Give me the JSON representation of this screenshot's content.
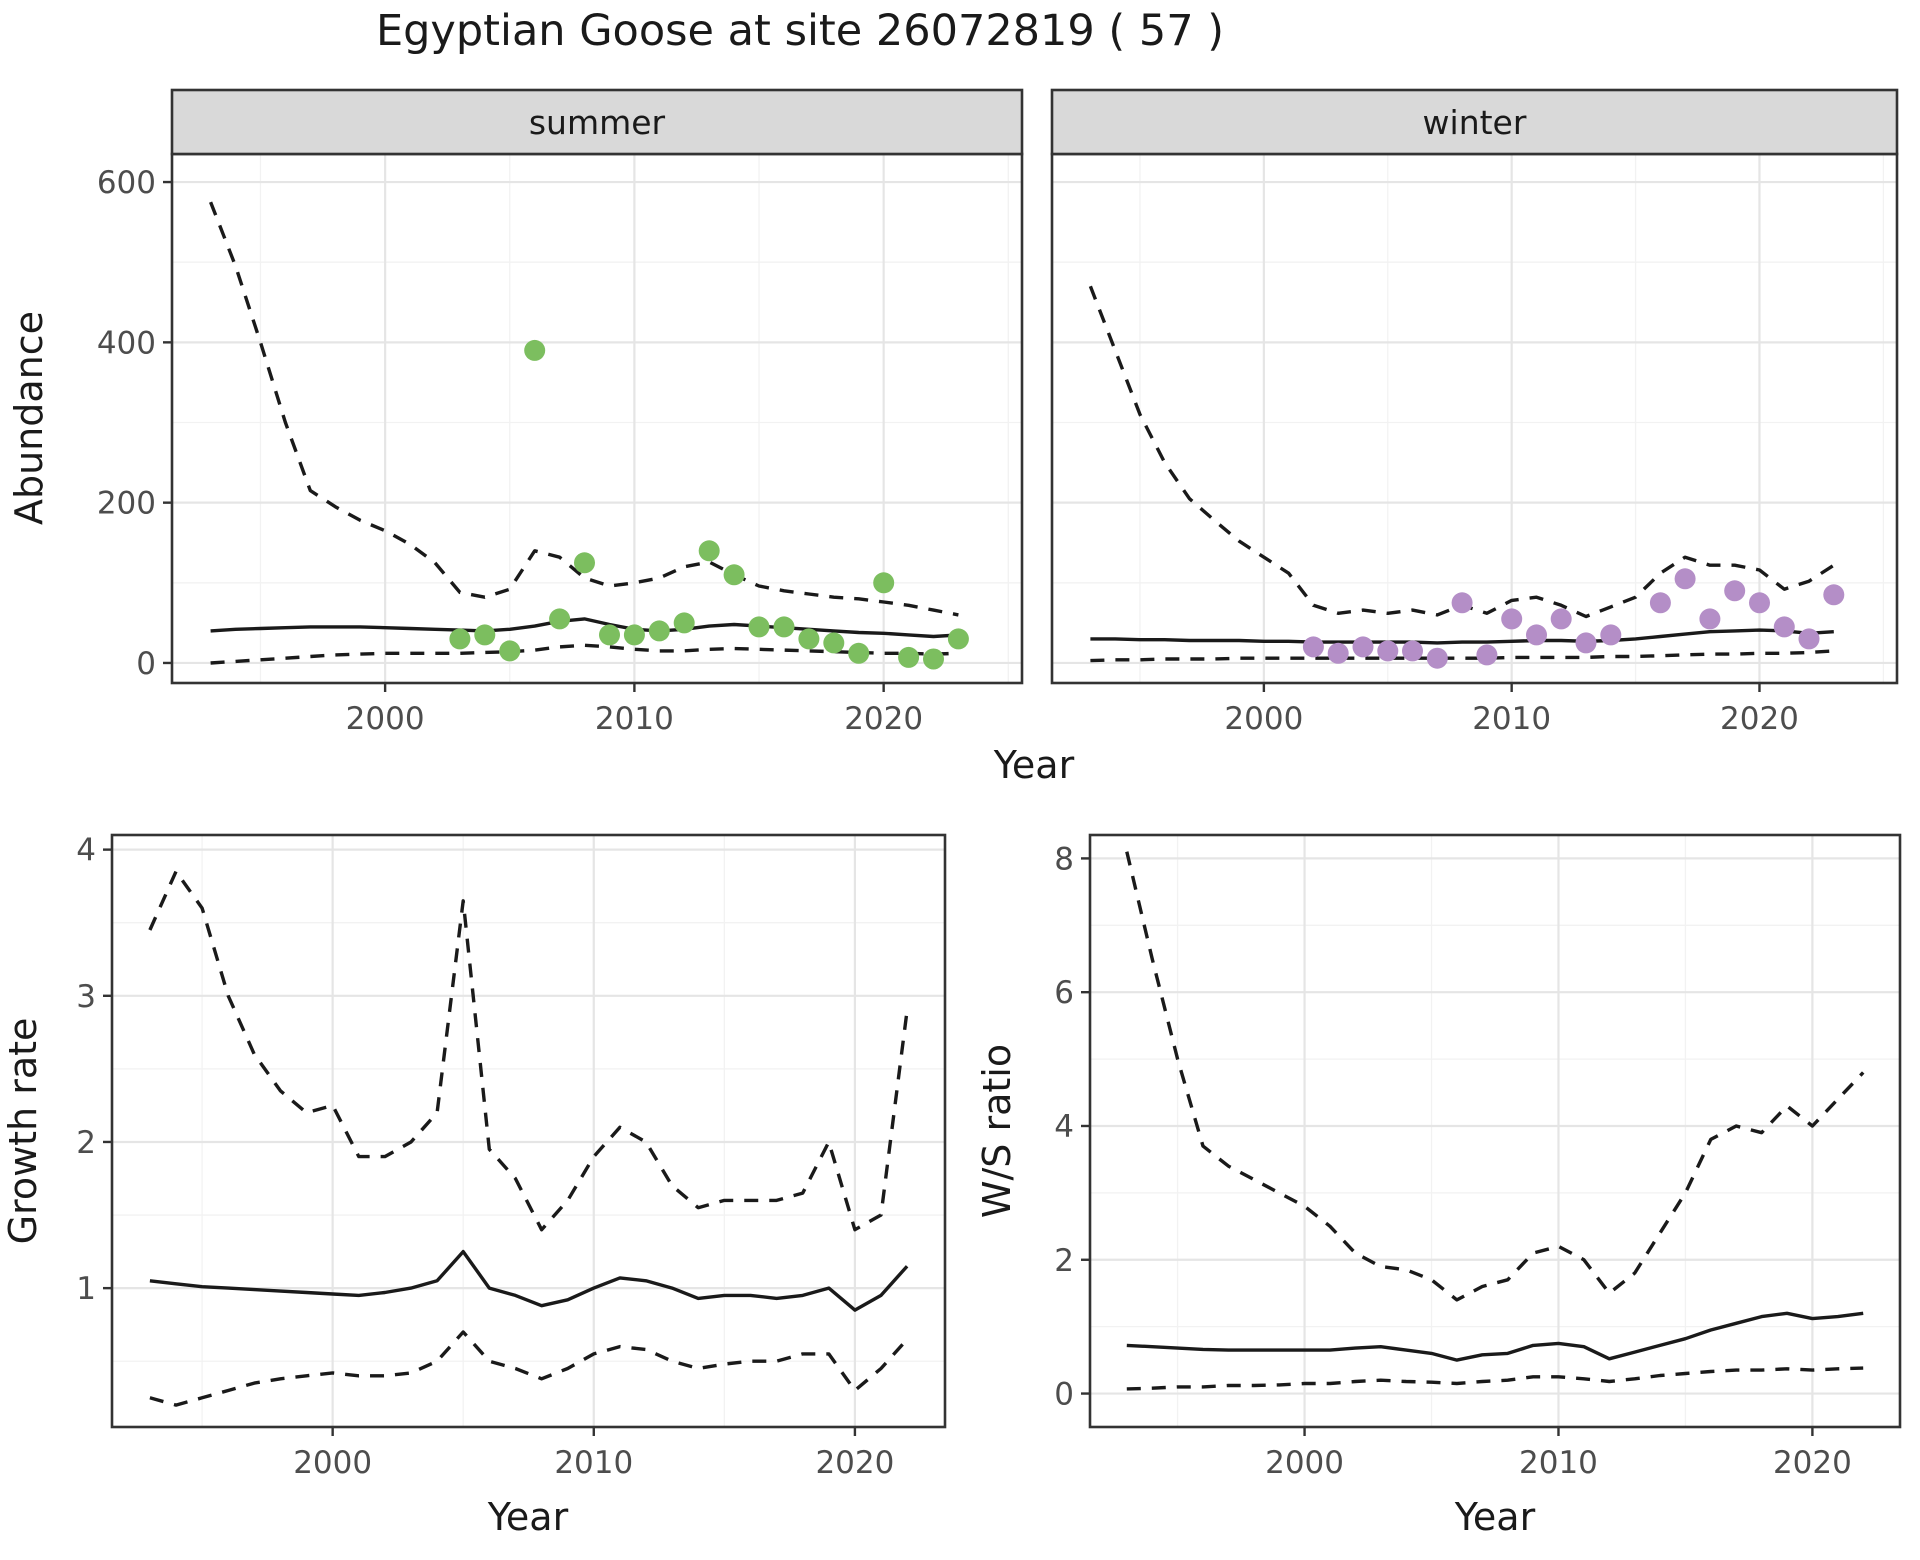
{
  "page_title": "Egyptian Goose at site 26072819 ( 57 )",
  "colors": {
    "line": "#1a1a1a",
    "panel_bg": "#ffffff",
    "grid_major": "#e5e5e5",
    "grid_minor": "#f2f2f2",
    "strip_bg": "#d9d9d9",
    "border": "#333333",
    "tick_text": "#4d4d4d",
    "summer_points": "#7cbe5f",
    "winter_points": "#b48ec7"
  },
  "chart_data": [
    {
      "id": "abundance-summer",
      "type": "line",
      "facet": "summer",
      "xlabel": "Year",
      "ylabel": "Abundance",
      "xlim": [
        1991.45,
        2025.55
      ],
      "ylim": [
        -25,
        635
      ],
      "xticks": [
        2000,
        2010,
        2020
      ],
      "yticks": [
        0,
        200,
        400,
        600
      ],
      "grid": true,
      "legend": "none",
      "series": [
        {
          "name": "upper-ci",
          "style": "dashed",
          "x": [
            1993,
            1994,
            1995,
            1996,
            1997,
            1998,
            1999,
            2000,
            2001,
            2002,
            2003,
            2004,
            2005,
            2006,
            2007,
            2008,
            2009,
            2010,
            2011,
            2012,
            2013,
            2014,
            2015,
            2016,
            2017,
            2018,
            2019,
            2020,
            2021,
            2022,
            2023
          ],
          "y": [
            575,
            495,
            400,
            300,
            215,
            195,
            178,
            165,
            148,
            125,
            88,
            82,
            92,
            140,
            132,
            106,
            96,
            100,
            106,
            120,
            126,
            110,
            96,
            90,
            86,
            82,
            80,
            76,
            72,
            66,
            60
          ]
        },
        {
          "name": "mean",
          "style": "solid",
          "x": [
            1993,
            1994,
            1995,
            1996,
            1997,
            1998,
            1999,
            2000,
            2001,
            2002,
            2003,
            2004,
            2005,
            2006,
            2007,
            2008,
            2009,
            2010,
            2011,
            2012,
            2013,
            2014,
            2015,
            2016,
            2017,
            2018,
            2019,
            2020,
            2021,
            2022,
            2023
          ],
          "y": [
            40,
            42,
            43,
            44,
            45,
            45,
            45,
            44,
            43,
            42,
            41,
            40,
            42,
            46,
            52,
            55,
            48,
            42,
            40,
            42,
            46,
            48,
            46,
            44,
            42,
            40,
            38,
            37,
            35,
            33,
            35
          ]
        },
        {
          "name": "lower-ci",
          "style": "dashed",
          "x": [
            1993,
            1994,
            1995,
            1996,
            1997,
            1998,
            1999,
            2000,
            2001,
            2002,
            2003,
            2004,
            2005,
            2006,
            2007,
            2008,
            2009,
            2010,
            2011,
            2012,
            2013,
            2014,
            2015,
            2016,
            2017,
            2018,
            2019,
            2020,
            2021,
            2022,
            2023
          ],
          "y": [
            0,
            2,
            4,
            6,
            8,
            10,
            11,
            12,
            12,
            12,
            12,
            13,
            14,
            16,
            20,
            22,
            20,
            17,
            15,
            15,
            17,
            18,
            17,
            16,
            15,
            14,
            13,
            12,
            12,
            11,
            12
          ]
        }
      ],
      "points": {
        "name": "summer-observation",
        "color": "#7cbe5f",
        "x": [
          2003,
          2004,
          2005,
          2006,
          2007,
          2008,
          2009,
          2010,
          2011,
          2012,
          2013,
          2014,
          2015,
          2016,
          2017,
          2018,
          2019,
          2020,
          2021,
          2022,
          2023
        ],
        "y": [
          30,
          35,
          15,
          390,
          55,
          125,
          35,
          35,
          40,
          50,
          140,
          110,
          45,
          45,
          30,
          25,
          12,
          100,
          7,
          5,
          30
        ]
      }
    },
    {
      "id": "abundance-winter",
      "type": "line",
      "facet": "winter",
      "xlabel": "Year",
      "ylabel": "Abundance",
      "xlim": [
        1991.45,
        2025.55
      ],
      "ylim": [
        -25,
        635
      ],
      "xticks": [
        2000,
        2010,
        2020
      ],
      "yticks": [
        0,
        200,
        400,
        600
      ],
      "grid": true,
      "legend": "none",
      "series": [
        {
          "name": "upper-ci",
          "style": "dashed",
          "x": [
            1993,
            1994,
            1995,
            1996,
            1997,
            1998,
            1999,
            2000,
            2001,
            2002,
            2003,
            2004,
            2005,
            2006,
            2007,
            2008,
            2009,
            2010,
            2011,
            2012,
            2013,
            2014,
            2015,
            2016,
            2017,
            2018,
            2019,
            2020,
            2021,
            2022,
            2023
          ],
          "y": [
            470,
            390,
            310,
            250,
            205,
            178,
            152,
            132,
            112,
            72,
            62,
            66,
            62,
            66,
            60,
            72,
            62,
            78,
            82,
            72,
            58,
            70,
            82,
            112,
            132,
            122,
            122,
            116,
            92,
            102,
            122
          ]
        },
        {
          "name": "mean",
          "style": "solid",
          "x": [
            1993,
            1994,
            1995,
            1996,
            1997,
            1998,
            1999,
            2000,
            2001,
            2002,
            2003,
            2004,
            2005,
            2006,
            2007,
            2008,
            2009,
            2010,
            2011,
            2012,
            2013,
            2014,
            2015,
            2016,
            2017,
            2018,
            2019,
            2020,
            2021,
            2022,
            2023
          ],
          "y": [
            30,
            30,
            29,
            29,
            28,
            28,
            28,
            27,
            27,
            26,
            26,
            26,
            26,
            26,
            25,
            26,
            26,
            27,
            28,
            28,
            27,
            28,
            30,
            33,
            36,
            39,
            40,
            41,
            40,
            37,
            39
          ]
        },
        {
          "name": "lower-ci",
          "style": "dashed",
          "x": [
            1993,
            1994,
            1995,
            1996,
            1997,
            1998,
            1999,
            2000,
            2001,
            2002,
            2003,
            2004,
            2005,
            2006,
            2007,
            2008,
            2009,
            2010,
            2011,
            2012,
            2013,
            2014,
            2015,
            2016,
            2017,
            2018,
            2019,
            2020,
            2021,
            2022,
            2023
          ],
          "y": [
            3,
            4,
            4,
            5,
            5,
            5,
            6,
            6,
            6,
            6,
            6,
            6,
            6,
            6,
            6,
            6,
            6,
            7,
            7,
            7,
            7,
            8,
            8,
            9,
            10,
            11,
            11,
            12,
            12,
            13,
            15
          ]
        }
      ],
      "points": {
        "name": "winter-observation",
        "color": "#b48ec7",
        "x": [
          2002,
          2003,
          2004,
          2005,
          2006,
          2007,
          2008,
          2009,
          2010,
          2011,
          2012,
          2013,
          2014,
          2016,
          2017,
          2018,
          2019,
          2020,
          2021,
          2022,
          2023
        ],
        "y": [
          20,
          12,
          20,
          15,
          15,
          6,
          75,
          10,
          55,
          35,
          55,
          25,
          35,
          75,
          105,
          55,
          90,
          75,
          45,
          30,
          85
        ]
      }
    },
    {
      "id": "growth-rate",
      "type": "line",
      "facet": null,
      "xlabel": "Year",
      "ylabel": "Growth rate",
      "xlim": [
        1991.55,
        2023.45
      ],
      "ylim": [
        0.05,
        4.1
      ],
      "xticks": [
        2000,
        2010,
        2020
      ],
      "yticks": [
        1,
        2,
        3,
        4
      ],
      "grid": true,
      "legend": "none",
      "series": [
        {
          "name": "upper-ci",
          "style": "dashed",
          "x": [
            1993,
            1994,
            1995,
            1996,
            1997,
            1998,
            1999,
            2000,
            2001,
            2002,
            2003,
            2004,
            2005,
            2006,
            2007,
            2008,
            2009,
            2010,
            2011,
            2012,
            2013,
            2014,
            2015,
            2016,
            2017,
            2018,
            2019,
            2020,
            2021,
            2022
          ],
          "y": [
            3.45,
            3.85,
            3.6,
            3.0,
            2.6,
            2.35,
            2.2,
            2.25,
            1.9,
            1.9,
            2.0,
            2.2,
            3.65,
            1.95,
            1.75,
            1.4,
            1.6,
            1.9,
            2.1,
            2.0,
            1.7,
            1.55,
            1.6,
            1.6,
            1.6,
            1.65,
            2.0,
            1.4,
            1.5,
            2.9
          ]
        },
        {
          "name": "mean",
          "style": "solid",
          "x": [
            1993,
            1994,
            1995,
            1996,
            1997,
            1998,
            1999,
            2000,
            2001,
            2002,
            2003,
            2004,
            2005,
            2006,
            2007,
            2008,
            2009,
            2010,
            2011,
            2012,
            2013,
            2014,
            2015,
            2016,
            2017,
            2018,
            2019,
            2020,
            2021,
            2022
          ],
          "y": [
            1.05,
            1.03,
            1.01,
            1.0,
            0.99,
            0.98,
            0.97,
            0.96,
            0.95,
            0.97,
            1.0,
            1.05,
            1.25,
            1.0,
            0.95,
            0.88,
            0.92,
            1.0,
            1.07,
            1.05,
            1.0,
            0.93,
            0.95,
            0.95,
            0.93,
            0.95,
            1.0,
            0.85,
            0.95,
            1.15
          ]
        },
        {
          "name": "lower-ci",
          "style": "dashed",
          "x": [
            1993,
            1994,
            1995,
            1996,
            1997,
            1998,
            1999,
            2000,
            2001,
            2002,
            2003,
            2004,
            2005,
            2006,
            2007,
            2008,
            2009,
            2010,
            2011,
            2012,
            2013,
            2014,
            2015,
            2016,
            2017,
            2018,
            2019,
            2020,
            2021,
            2022
          ],
          "y": [
            0.25,
            0.2,
            0.25,
            0.3,
            0.35,
            0.38,
            0.4,
            0.42,
            0.4,
            0.4,
            0.42,
            0.5,
            0.7,
            0.5,
            0.45,
            0.38,
            0.45,
            0.55,
            0.6,
            0.58,
            0.5,
            0.45,
            0.48,
            0.5,
            0.5,
            0.55,
            0.55,
            0.3,
            0.45,
            0.65
          ]
        }
      ]
    },
    {
      "id": "ws-ratio",
      "type": "line",
      "facet": null,
      "xlabel": "Year",
      "ylabel": "W/S ratio",
      "xlim": [
        1991.55,
        2023.45
      ],
      "ylim": [
        -0.5,
        8.35
      ],
      "xticks": [
        2000,
        2010,
        2020
      ],
      "yticks": [
        0,
        2,
        4,
        6,
        8
      ],
      "grid": true,
      "legend": "none",
      "series": [
        {
          "name": "upper-ci",
          "style": "dashed",
          "x": [
            1993,
            1994,
            1995,
            1996,
            1997,
            1998,
            1999,
            2000,
            2001,
            2002,
            2003,
            2004,
            2005,
            2006,
            2007,
            2008,
            2009,
            2010,
            2011,
            2012,
            2013,
            2014,
            2015,
            2016,
            2017,
            2018,
            2019,
            2020,
            2021,
            2022
          ],
          "y": [
            8.1,
            6.5,
            5.0,
            3.7,
            3.4,
            3.2,
            3.0,
            2.8,
            2.5,
            2.1,
            1.9,
            1.85,
            1.7,
            1.4,
            1.6,
            1.7,
            2.1,
            2.2,
            2.0,
            1.5,
            1.8,
            2.4,
            3.0,
            3.8,
            4.0,
            3.9,
            4.3,
            4.0,
            4.4,
            4.8
          ]
        },
        {
          "name": "mean",
          "style": "solid",
          "x": [
            1993,
            1994,
            1995,
            1996,
            1997,
            1998,
            1999,
            2000,
            2001,
            2002,
            2003,
            2004,
            2005,
            2006,
            2007,
            2008,
            2009,
            2010,
            2011,
            2012,
            2013,
            2014,
            2015,
            2016,
            2017,
            2018,
            2019,
            2020,
            2021,
            2022
          ],
          "y": [
            0.72,
            0.7,
            0.68,
            0.66,
            0.65,
            0.65,
            0.65,
            0.65,
            0.65,
            0.68,
            0.7,
            0.65,
            0.6,
            0.5,
            0.58,
            0.6,
            0.72,
            0.75,
            0.7,
            0.52,
            0.62,
            0.72,
            0.82,
            0.95,
            1.05,
            1.15,
            1.2,
            1.12,
            1.15,
            1.2
          ]
        },
        {
          "name": "lower-ci",
          "style": "dashed",
          "x": [
            1993,
            1994,
            1995,
            1996,
            1997,
            1998,
            1999,
            2000,
            2001,
            2002,
            2003,
            2004,
            2005,
            2006,
            2007,
            2008,
            2009,
            2010,
            2011,
            2012,
            2013,
            2014,
            2015,
            2016,
            2017,
            2018,
            2019,
            2020,
            2021,
            2022
          ],
          "y": [
            0.07,
            0.08,
            0.1,
            0.1,
            0.12,
            0.12,
            0.13,
            0.15,
            0.15,
            0.18,
            0.2,
            0.18,
            0.17,
            0.15,
            0.18,
            0.2,
            0.25,
            0.25,
            0.22,
            0.18,
            0.22,
            0.27,
            0.3,
            0.33,
            0.35,
            0.35,
            0.37,
            0.35,
            0.37,
            0.38
          ]
        }
      ]
    }
  ]
}
